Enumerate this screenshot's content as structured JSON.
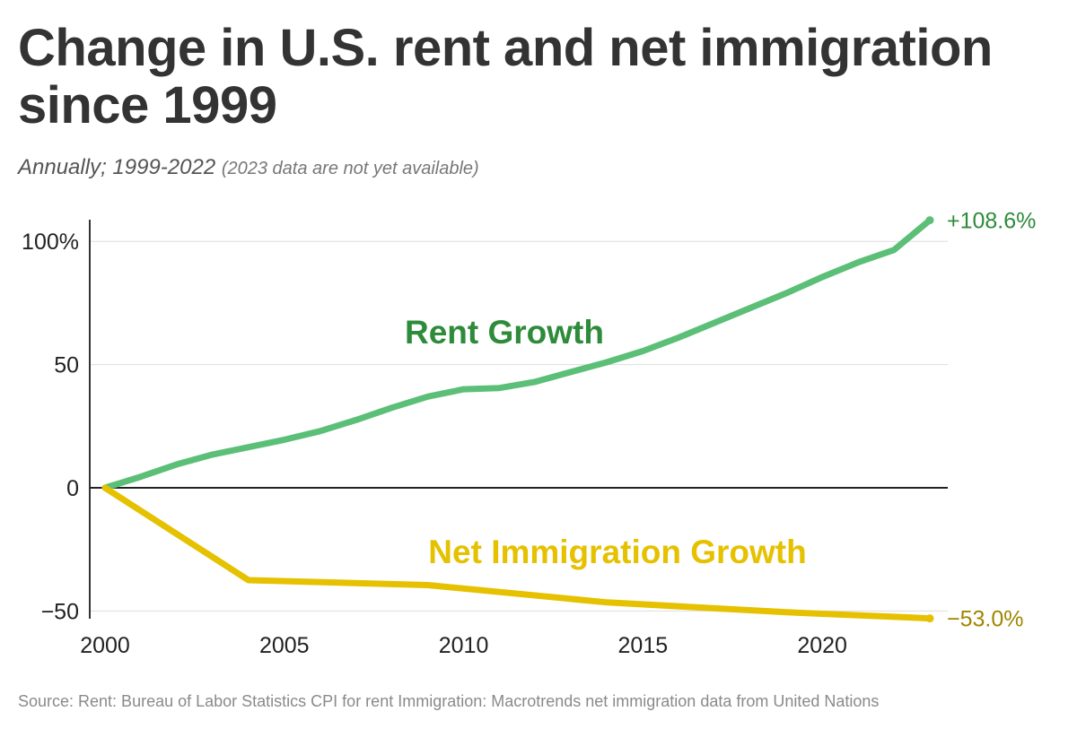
{
  "title": "Change in U.S. rent and net immigration since 1999",
  "subtitle": "Annually; 1999-2022",
  "subtitle_note": "(2023 data are not yet available)",
  "source": "Source: Rent: Bureau of Labor Statistics CPI for rent Immigration: Macrotrends net immigration data from United Nations",
  "chart_data": {
    "type": "line",
    "xlim": [
      2000,
      2023
    ],
    "ylim": [
      -50,
      108.6
    ],
    "x_ticks": [
      2000,
      2005,
      2010,
      2015,
      2020
    ],
    "x_tick_labels": [
      "2000",
      "2005",
      "2010",
      "2015",
      "2020"
    ],
    "y_ticks": [
      100,
      50,
      0,
      -50
    ],
    "y_tick_labels": [
      "100%",
      "50",
      "0",
      "−50"
    ],
    "grid": true,
    "series": [
      {
        "name": "Rent Growth",
        "color": "#5bbf77",
        "label_color": "#2e8b3a",
        "end_label": "+108.6%",
        "end_label_color": "#2e8b3a",
        "x": [
          2000,
          2001,
          2002,
          2003,
          2004,
          2005,
          2006,
          2007,
          2008,
          2009,
          2010,
          2011,
          2012,
          2013,
          2014,
          2015,
          2016,
          2017,
          2018,
          2019,
          2020,
          2021,
          2022,
          2023
        ],
        "values": [
          0,
          4.5,
          9.5,
          13.5,
          16.5,
          19.5,
          23,
          27.5,
          32.5,
          37,
          40,
          40.5,
          43,
          47,
          51,
          55.5,
          61,
          67,
          73,
          79,
          85.5,
          91.5,
          96.5,
          108.6
        ]
      },
      {
        "name": "Net Immigration Growth",
        "color": "#e5c100",
        "label_color": "#e5c100",
        "end_label": "−53.0%",
        "end_label_color": "#a08600",
        "x": [
          2000,
          2004,
          2009,
          2014,
          2019,
          2023
        ],
        "values": [
          0,
          -37.5,
          -39.5,
          -46.5,
          -50.5,
          -53.0
        ]
      }
    ]
  }
}
